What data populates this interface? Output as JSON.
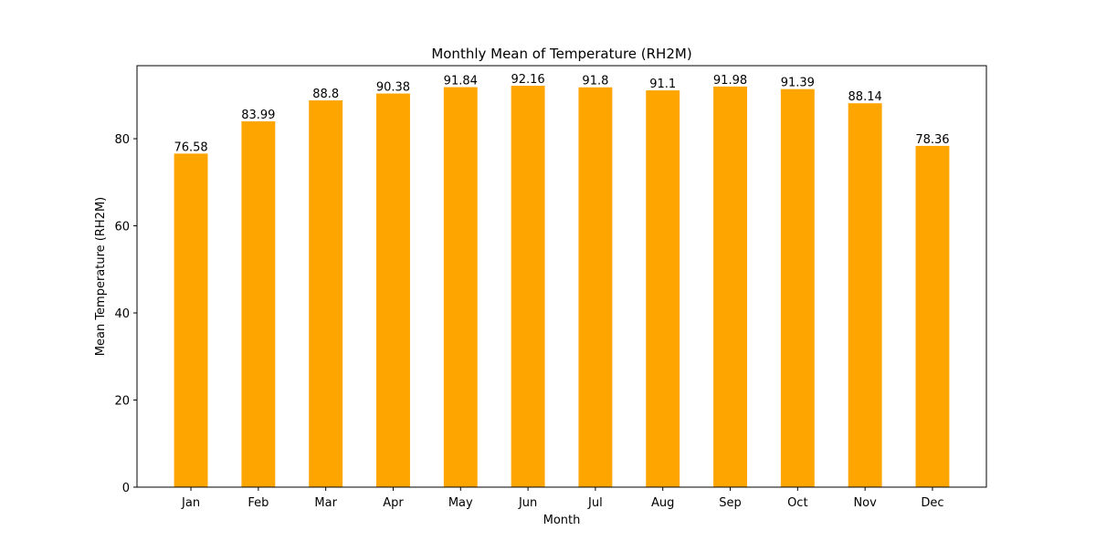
{
  "chart_data": {
    "type": "bar",
    "title": "Monthly Mean of Temperature (RH2M)",
    "xlabel": "Month",
    "ylabel": "Mean Temperature (RH2M)",
    "categories": [
      "Jan",
      "Feb",
      "Mar",
      "Apr",
      "May",
      "Jun",
      "Jul",
      "Aug",
      "Sep",
      "Oct",
      "Nov",
      "Dec"
    ],
    "values": [
      76.58,
      83.99,
      88.8,
      90.38,
      91.84,
      92.16,
      91.8,
      91.1,
      91.98,
      91.39,
      88.14,
      78.36
    ],
    "value_labels": [
      "76.58",
      "83.99",
      "88.8",
      "90.38",
      "91.84",
      "92.16",
      "91.8",
      "91.1",
      "91.98",
      "91.39",
      "88.14",
      "78.36"
    ],
    "ylim": [
      0,
      96.77
    ],
    "yticks": [
      0,
      20,
      40,
      60,
      80
    ],
    "ytick_labels": [
      "0",
      "20",
      "40",
      "60",
      "80"
    ],
    "bar_color": "#ffa500",
    "grid": false,
    "legend": "none"
  }
}
